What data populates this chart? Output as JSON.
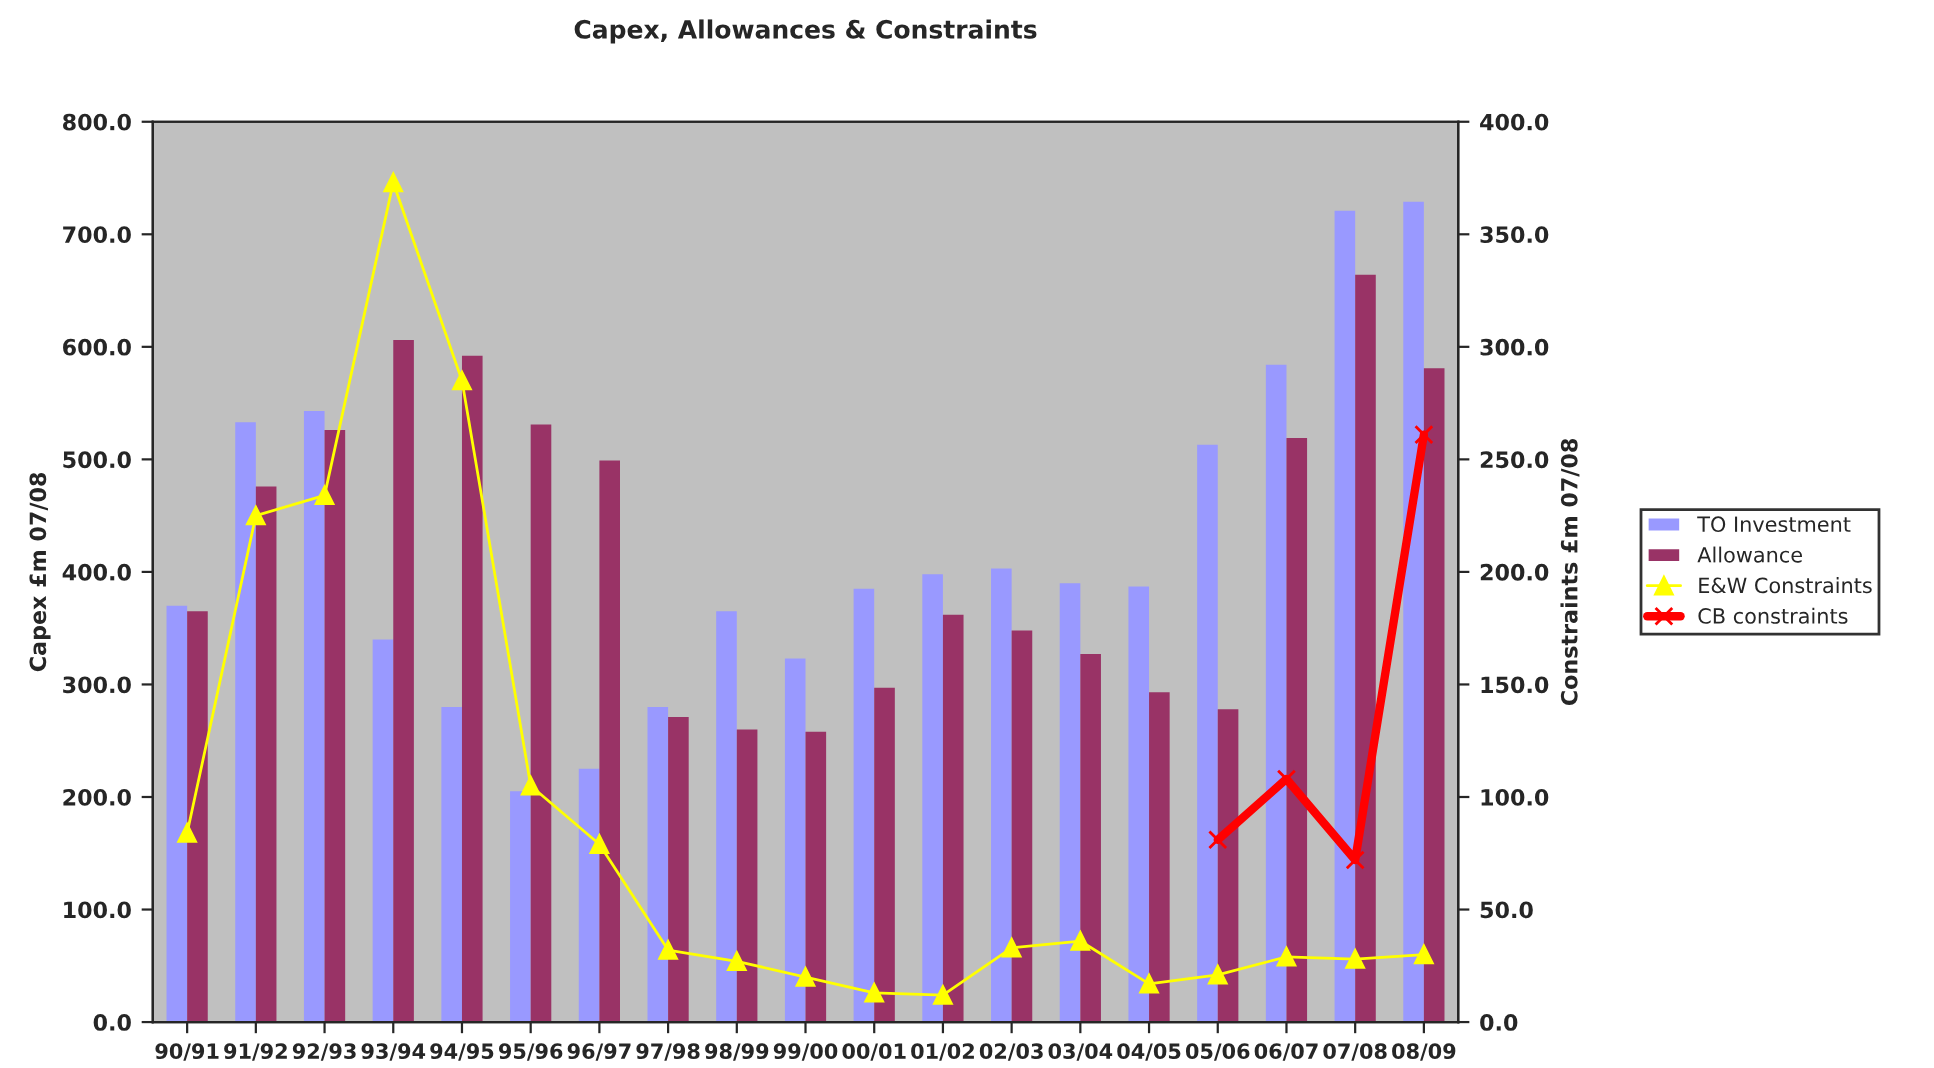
{
  "chart_data": {
    "type": "bar",
    "title": "Capex, Allowances & Constraints",
    "categories": [
      "90/91",
      "91/92",
      "92/93",
      "93/94",
      "94/95",
      "95/96",
      "96/97",
      "97/98",
      "98/99",
      "99/00",
      "00/01",
      "01/02",
      "02/03",
      "03/04",
      "04/05",
      "05/06",
      "06/07",
      "07/08",
      "08/09"
    ],
    "series": [
      {
        "name": "TO Investment",
        "color": "#9999ff",
        "values": [
          370,
          533,
          543,
          340,
          280,
          205,
          225,
          280,
          365,
          323,
          385,
          398,
          403,
          390,
          387,
          513,
          584,
          721,
          729
        ]
      },
      {
        "name": "Allowance",
        "color": "#993366",
        "values": [
          365,
          476,
          526,
          606,
          592,
          531,
          499,
          271,
          260,
          258,
          297,
          362,
          348,
          327,
          293,
          278,
          519,
          664,
          581
        ]
      },
      {
        "name": "E&W Constraints",
        "type": "line",
        "axis": "y2",
        "color": "#ffff00",
        "marker": "triangle",
        "values": [
          84,
          225,
          234,
          373,
          285,
          105,
          79,
          32,
          27,
          20,
          13,
          12,
          33,
          36,
          17,
          21,
          29,
          28,
          30
        ]
      },
      {
        "name": "CB constraints",
        "type": "line",
        "axis": "y2",
        "color": "#ff0000",
        "marker": "cross",
        "values": [
          null,
          null,
          null,
          null,
          null,
          null,
          null,
          null,
          null,
          null,
          null,
          null,
          null,
          null,
          null,
          81,
          108,
          72,
          261
        ]
      }
    ],
    "ylabel": "Capex £m 07/08",
    "y2label": "Constraints £m 07/08",
    "ylim": [
      0,
      800
    ],
    "yticks": [
      {
        "value": 0,
        "label": "0.0"
      },
      {
        "value": 100,
        "label": "100.0"
      },
      {
        "value": 200,
        "label": "200.0"
      },
      {
        "value": 300,
        "label": "300.0"
      },
      {
        "value": 400,
        "label": "400.0"
      },
      {
        "value": 500,
        "label": "500.0"
      },
      {
        "value": 600,
        "label": "600.0"
      },
      {
        "value": 700,
        "label": "700.0"
      },
      {
        "value": 800,
        "label": "800.0"
      }
    ],
    "y2lim": [
      0,
      400
    ],
    "y2ticks": [
      {
        "value": 0,
        "label": "0.0"
      },
      {
        "value": 50,
        "label": "50.0"
      },
      {
        "value": 100,
        "label": "100.0"
      },
      {
        "value": 150,
        "label": "150.0"
      },
      {
        "value": 200,
        "label": "200.0"
      },
      {
        "value": 250,
        "label": "250.0"
      },
      {
        "value": 300,
        "label": "300.0"
      },
      {
        "value": 350,
        "label": "350.0"
      },
      {
        "value": 400,
        "label": "400.0"
      }
    ],
    "grid": false,
    "legend": "right"
  }
}
